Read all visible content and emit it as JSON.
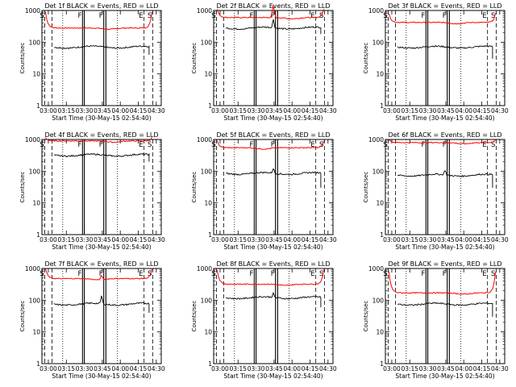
{
  "chart_data": {
    "type": "line",
    "panel_grid": "3x3",
    "shared": {
      "xlabel": "Start Time (30-May-15 02:54:40)",
      "ylabel": "Counts/sec",
      "x_ticks": [
        "03:00",
        "03:15",
        "03:30",
        "03:45",
        "04:00",
        "04:15",
        "04:30"
      ],
      "x_tick_hours": [
        3.0,
        3.25,
        3.5,
        3.75,
        4.0,
        4.25,
        4.5
      ],
      "y_scale": "log",
      "ylim": [
        1,
        1000
      ],
      "y_ticks": [
        "1",
        "10",
        "100",
        "1000"
      ],
      "xlim_hours": [
        2.911,
        4.569
      ],
      "series_colors": {
        "events": "#000000",
        "lld": "#ff0000"
      },
      "markers": [
        {
          "label": "S",
          "hour": 2.95,
          "style": "dashed"
        },
        {
          "label": "",
          "hour": 3.05,
          "style": "dashed"
        },
        {
          "label": "",
          "hour": 3.2,
          "style": "dotted"
        },
        {
          "label": "F",
          "hour": 3.475,
          "style": "solid"
        },
        {
          "label": "",
          "hour": 3.5,
          "style": "solid"
        },
        {
          "label": "F",
          "hour": 3.77,
          "style": "solid"
        },
        {
          "label": "",
          "hour": 3.8,
          "style": "solid"
        },
        {
          "label": "",
          "hour": 3.96,
          "style": "dotted"
        },
        {
          "label": "E",
          "hour": 4.33,
          "style": "dashed"
        },
        {
          "label": "S",
          "hour": 4.45,
          "style": "dashed"
        }
      ],
      "events_span_hours": [
        3.08,
        4.4
      ],
      "lld_span_hours": [
        2.96,
        4.44
      ]
    },
    "panels": [
      {
        "title": "Det 1f BLACK = Events, RED = LLD",
        "lld_level": 280,
        "lld_edge_peak": 900,
        "lld_dip_hour": 3.85,
        "events_level": 70,
        "events_end": 40,
        "events_bump": 0,
        "lld_bump": 0
      },
      {
        "title": "Det 2f BLACK = Events, RED = LLD",
        "lld_level": 600,
        "lld_edge_peak": 1100,
        "lld_dip_hour": 4.0,
        "events_level": 280,
        "events_end": 180,
        "events_bump": 0.25,
        "lld_bump": 0.35
      },
      {
        "title": "Det 3f BLACK = Events, RED = LLD",
        "lld_level": 420,
        "lld_edge_peak": 800,
        "lld_dip_hour": 3.9,
        "events_level": 70,
        "events_end": 30,
        "events_bump": 0,
        "lld_bump": 0
      },
      {
        "title": "Det 4f BLACK = Events, RED = LLD",
        "lld_level": 900,
        "lld_edge_peak": 1150,
        "lld_dip_hour": 3.9,
        "events_level": 320,
        "events_end": 200,
        "events_bump": 0,
        "lld_bump": 0
      },
      {
        "title": "Det 5f BLACK = Events, RED = LLD",
        "lld_level": 550,
        "lld_edge_peak": 900,
        "lld_dip_hour": 3.6,
        "events_level": 85,
        "events_end": 30,
        "events_bump": 0.15,
        "lld_bump": 0
      },
      {
        "title": "Det 6f BLACK = Events, RED = LLD",
        "lld_level": 800,
        "lld_edge_peak": 1000,
        "lld_dip_hour": 4.0,
        "events_level": 75,
        "events_end": 30,
        "events_bump": 0.15,
        "lld_bump": 0
      },
      {
        "title": "Det 7f BLACK = Events, RED = LLD",
        "lld_level": 480,
        "lld_edge_peak": 1000,
        "lld_dip_hour": 3.7,
        "events_level": 75,
        "events_end": 40,
        "events_bump": 0.25,
        "lld_bump": 0.12
      },
      {
        "title": "Det 8f BLACK = Events, RED = LLD",
        "lld_level": 320,
        "lld_edge_peak": 900,
        "lld_dip_hour": 3.9,
        "events_level": 120,
        "events_end": 60,
        "events_bump": 0.12,
        "lld_bump": 0
      },
      {
        "title": "Det 9f BLACK = Events, RED = LLD",
        "lld_level": 170,
        "lld_edge_peak": 800,
        "lld_dip_hour": 4.0,
        "events_level": 75,
        "events_end": 30,
        "events_bump": 0,
        "lld_bump": 0
      }
    ]
  }
}
